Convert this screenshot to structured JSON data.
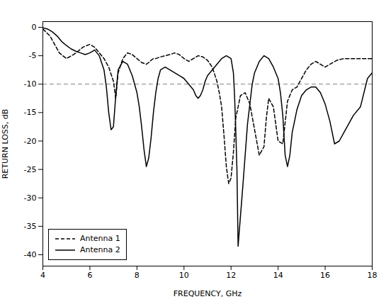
{
  "chart_data": {
    "type": "line",
    "xlabel": "FREQUENCY, GHz",
    "ylabel": "RETURN LOSS, dB",
    "xlim": [
      4,
      18
    ],
    "ylim": [
      -42,
      1
    ],
    "xticks": [
      4,
      6,
      8,
      10,
      12,
      14,
      16,
      18
    ],
    "yticks": [
      0,
      -5,
      -10,
      -15,
      -20,
      -25,
      -30,
      -35,
      -40
    ],
    "grid": false,
    "legend": "lower left",
    "ref_line": {
      "y": -10,
      "color": "gray",
      "line_style": "dashed"
    },
    "series": [
      {
        "name": "Antenna 1",
        "color": "black",
        "line_style": "dashed",
        "x": [
          4.0,
          4.3,
          4.5,
          4.7,
          5.0,
          5.3,
          5.5,
          5.7,
          6.0,
          6.2,
          6.4,
          6.6,
          6.8,
          7.0,
          7.1,
          7.2,
          7.4,
          7.6,
          7.8,
          8.0,
          8.2,
          8.4,
          8.5,
          8.6,
          8.7,
          8.8,
          9.0,
          9.2,
          9.4,
          9.6,
          9.8,
          10.0,
          10.2,
          10.4,
          10.6,
          10.8,
          11.0,
          11.2,
          11.4,
          11.5,
          11.6,
          11.7,
          11.8,
          11.9,
          12.0,
          12.1,
          12.2,
          12.4,
          12.6,
          12.8,
          13.0,
          13.2,
          13.4,
          13.5,
          13.6,
          13.8,
          14.0,
          14.2,
          14.4,
          14.6,
          14.8,
          15.0,
          15.2,
          15.4,
          15.6,
          15.8,
          16.0,
          16.2,
          16.5,
          16.8,
          17.0,
          17.2,
          17.5,
          17.8,
          18.0
        ],
        "values": [
          -0.3,
          -1.5,
          -3.0,
          -4.5,
          -5.5,
          -4.8,
          -4.2,
          -3.5,
          -3.0,
          -3.5,
          -4.5,
          -5.5,
          -7.0,
          -9.5,
          -12.5,
          -8.0,
          -5.5,
          -4.5,
          -4.8,
          -5.5,
          -6.2,
          -6.5,
          -6.2,
          -5.8,
          -5.5,
          -5.5,
          -5.2,
          -5.0,
          -4.8,
          -4.5,
          -4.8,
          -5.5,
          -6.0,
          -5.5,
          -5.0,
          -5.2,
          -5.8,
          -7.0,
          -9.5,
          -11.5,
          -14.0,
          -19.0,
          -24.5,
          -27.5,
          -26.5,
          -22.0,
          -16.0,
          -12.0,
          -11.5,
          -13.5,
          -18.0,
          -22.5,
          -21.0,
          -16.0,
          -12.5,
          -14.0,
          -20.0,
          -20.5,
          -13.0,
          -11.0,
          -10.5,
          -9.0,
          -7.5,
          -6.5,
          -6.0,
          -6.5,
          -7.0,
          -6.5,
          -5.8,
          -5.5,
          -5.5,
          -5.5,
          -5.5,
          -5.5,
          -5.5
        ]
      },
      {
        "name": "Antenna 2",
        "color": "black",
        "line_style": "solid",
        "x": [
          4.0,
          4.2,
          4.4,
          4.6,
          4.8,
          5.0,
          5.2,
          5.4,
          5.6,
          5.8,
          6.0,
          6.2,
          6.4,
          6.6,
          6.7,
          6.8,
          6.9,
          7.0,
          7.1,
          7.2,
          7.4,
          7.6,
          7.8,
          8.0,
          8.1,
          8.2,
          8.3,
          8.4,
          8.5,
          8.6,
          8.7,
          8.8,
          8.9,
          9.0,
          9.2,
          9.4,
          9.6,
          9.8,
          10.0,
          10.2,
          10.3,
          10.4,
          10.5,
          10.6,
          10.7,
          10.8,
          10.9,
          11.0,
          11.2,
          11.4,
          11.6,
          11.8,
          12.0,
          12.1,
          12.15,
          12.2,
          12.25,
          12.3,
          12.5,
          12.7,
          12.9,
          13.0,
          13.1,
          13.2,
          13.4,
          13.6,
          13.8,
          14.0,
          14.1,
          14.2,
          14.3,
          14.4,
          14.5,
          14.6,
          14.8,
          15.0,
          15.2,
          15.4,
          15.6,
          15.8,
          16.0,
          16.2,
          16.4,
          16.6,
          16.8,
          17.0,
          17.2,
          17.5,
          17.8,
          18.0
        ],
        "values": [
          -0.1,
          -0.3,
          -0.8,
          -1.5,
          -2.5,
          -3.2,
          -3.8,
          -4.2,
          -4.5,
          -4.8,
          -4.5,
          -4.0,
          -5.0,
          -7.5,
          -10.5,
          -15.0,
          -18.0,
          -17.5,
          -12.0,
          -7.5,
          -6.0,
          -6.5,
          -8.5,
          -11.5,
          -14.0,
          -17.5,
          -21.5,
          -24.5,
          -23.0,
          -19.5,
          -15.0,
          -11.5,
          -9.0,
          -7.5,
          -7.0,
          -7.5,
          -8.0,
          -8.5,
          -9.0,
          -10.0,
          -10.5,
          -11.0,
          -12.0,
          -12.5,
          -12.0,
          -11.0,
          -9.5,
          -8.5,
          -7.5,
          -6.5,
          -5.5,
          -5.0,
          -5.5,
          -8.0,
          -12.0,
          -18.0,
          -25.0,
          -38.5,
          -28.0,
          -17.0,
          -10.0,
          -8.0,
          -7.0,
          -6.0,
          -5.0,
          -5.5,
          -7.0,
          -9.0,
          -11.5,
          -15.5,
          -22.5,
          -24.5,
          -22.5,
          -18.5,
          -14.5,
          -12.0,
          -11.0,
          -10.5,
          -10.5,
          -11.5,
          -13.5,
          -16.5,
          -20.5,
          -20.0,
          -18.5,
          -17.0,
          -15.5,
          -14.0,
          -9.0,
          -8.0
        ]
      }
    ]
  }
}
